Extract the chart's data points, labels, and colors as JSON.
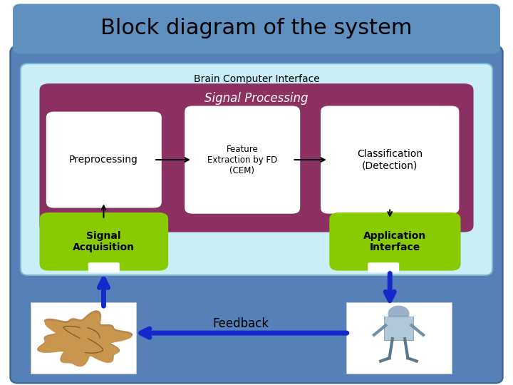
{
  "title": "Block diagram of the system",
  "title_bg": "#6090c0",
  "title_fontsize": 22,
  "outer_bg": "#5580b8",
  "inner_bg": "#c8eef8",
  "signal_proc_color": "#8b3060",
  "white_box": "#ffffff",
  "green_box": "#88cc00",
  "black_arrow": "#000000",
  "blue_arrow": "#1428cc",
  "bci_label": "Brain Computer Interface",
  "sp_label": "Signal Processing",
  "pre_label": "Preprocessing",
  "feat_label": "Feature\nExtraction by FD\n(CEM)",
  "classif_label": "Classification\n(Detection)",
  "sig_acq_label": "Signal\nAcquisition",
  "app_iface_label": "Application\nInterface",
  "feedback_label": "Feedback"
}
